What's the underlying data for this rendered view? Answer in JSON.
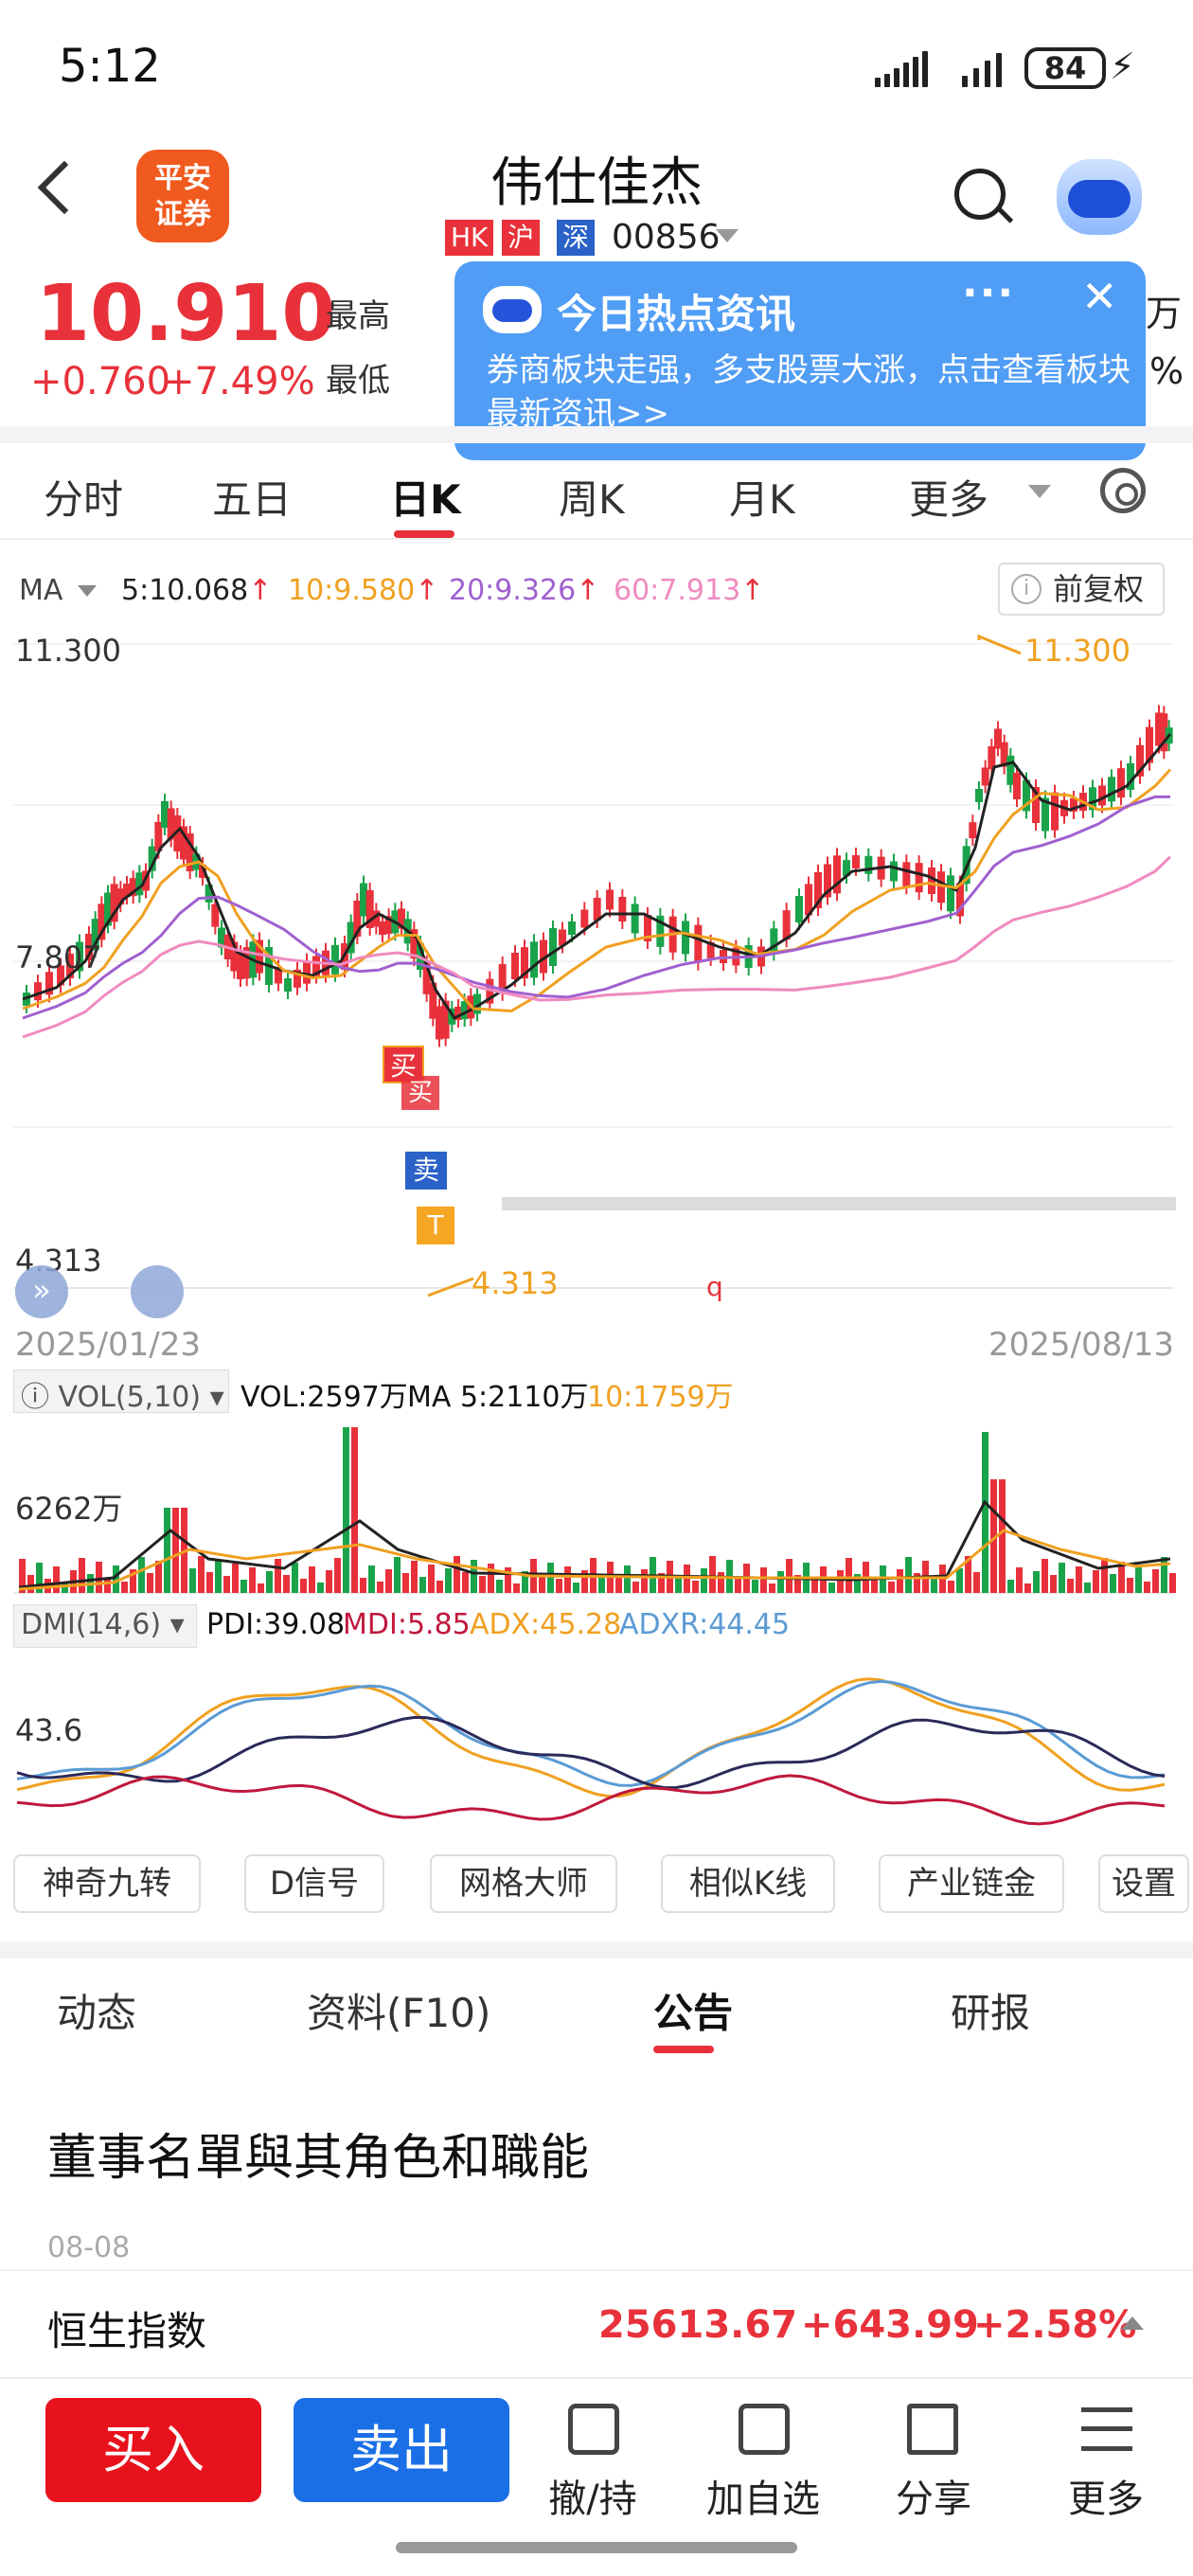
{
  "status_bar": {
    "time": "5:12",
    "battery": "84"
  },
  "header": {
    "logo_line1": "平安",
    "logo_line2": "证券",
    "stock_name": "伟仕佳杰",
    "tags": [
      "HK",
      "沪",
      "深"
    ],
    "code": "00856"
  },
  "quote": {
    "price": "10.910",
    "change": "+0.760",
    "change_pct": "+7.49%",
    "high_label": "最高",
    "low_label": "最低",
    "partial_right_1": "万",
    "partial_right_2": "%"
  },
  "popup": {
    "title": "今日热点资讯",
    "body": "券商板块走强，多支股票大涨，点击查看板块最新资讯>>",
    "dots": "···",
    "close": "✕"
  },
  "period_tabs": [
    "分时",
    "五日",
    "日K",
    "周K",
    "月K",
    "更多"
  ],
  "active_period": "日K",
  "ma_legend": {
    "label": "MA",
    "ma5": "5:10.068",
    "ma10": "10:9.580",
    "ma20": "20:9.326",
    "ma60": "60:7.913",
    "fuquan": "前复权"
  },
  "colors": {
    "up": "#e8313a",
    "down": "#1aa34a",
    "ma5": "#222222",
    "ma10": "#f0a020",
    "ma20": "#a060d0",
    "ma60": "#f08ac0",
    "accent_blue": "#1a6fe6"
  },
  "chart_data": {
    "type": "candlestick",
    "y_top_label": "11.300",
    "y_mid_label": "7.807",
    "y_bottom_label": "4.313",
    "ylim": [
      4.313,
      11.3
    ],
    "start_date": "2025/01/23",
    "end_date": "2025/08/13",
    "max_marker": "11.300",
    "min_marker": "4.313",
    "signal_labels": [
      "买",
      "买",
      "卖",
      "T"
    ],
    "misc_glyph": "q",
    "volume": {
      "legend_label": "VOL(5,10)",
      "vol": "VOL:2597万",
      "ma5": "MA 5:2110万",
      "ma10": "10:1759万",
      "axis_label": "6262万"
    },
    "dmi": {
      "legend_label": "DMI(14,6)",
      "pdi": "PDI:39.08",
      "mdi": "MDI:5.85",
      "adx": "ADX:45.28",
      "adxr": "ADXR:44.45",
      "axis_label": "43.6"
    }
  },
  "tools": [
    "神奇九转",
    "D信号",
    "网格大师",
    "相似K线",
    "产业链金",
    "设置"
  ],
  "sub_tabs": [
    "动态",
    "资料(F10)",
    "公告",
    "研报"
  ],
  "active_sub_tab": "公告",
  "news": {
    "title": "董事名單與其角色和職能",
    "date": "08-08"
  },
  "index_bar": {
    "name": "恒生指数",
    "value": "25613.67",
    "change": "+643.99",
    "pct": "+2.58%"
  },
  "bottom_actions": {
    "buy": "买入",
    "sell": "卖出",
    "items": [
      "撤/持",
      "加自选",
      "分享",
      "更多"
    ]
  }
}
